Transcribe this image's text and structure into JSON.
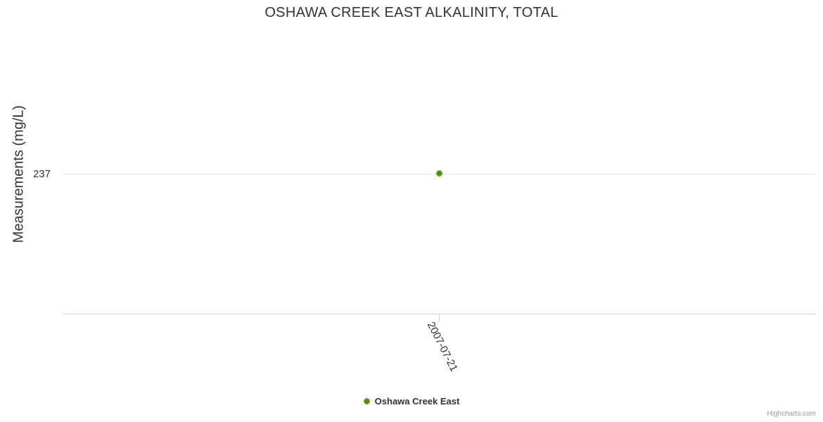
{
  "chart": {
    "title": "OSHAWA CREEK EAST ALKALINITY, TOTAL",
    "y_axis": {
      "title": "Measurements (mg/L)",
      "tick_label": "237"
    },
    "x_axis": {
      "tick_label": "2007-07-21"
    },
    "legend": {
      "label": "Oshawa Creek East"
    },
    "credits": "Highcharts.com",
    "colors": {
      "text_dark": "#333333",
      "grid_line": "#e6e6e6",
      "axis_line": "#ccd6eb",
      "credits_gray": "#999999",
      "marker_center": "#3c7800",
      "marker_mid": "#5fa50f",
      "marker_outer": "#82b928"
    }
  },
  "chart_data": {
    "type": "scatter",
    "title": "OSHAWA CREEK EAST ALKALINITY, TOTAL",
    "xlabel": "",
    "ylabel": "Measurements (mg/L)",
    "x": [
      "2007-07-21"
    ],
    "series": [
      {
        "name": "Oshawa Creek East",
        "values": [
          237
        ],
        "marker_color": "#5fa50f"
      }
    ],
    "y_ticks": [
      237
    ],
    "x_ticks": [
      "2007-07-21"
    ],
    "grid": "horizontal-only",
    "legend_position": "bottom-center",
    "credits": "Highcharts.com"
  }
}
